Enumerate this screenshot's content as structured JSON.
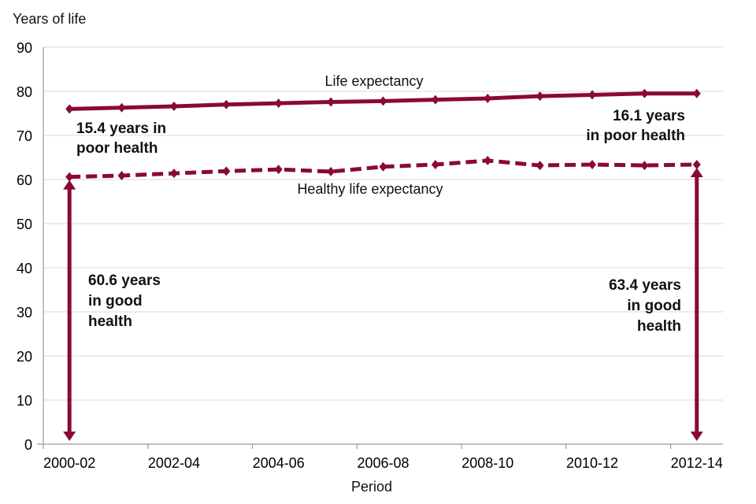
{
  "chart_data": {
    "type": "line",
    "title": "",
    "ylabel": "Years of life",
    "xlabel": "Period",
    "ylim": [
      0,
      90
    ],
    "yticks": [
      0,
      10,
      20,
      30,
      40,
      50,
      60,
      70,
      80,
      90
    ],
    "grid": true,
    "categories": [
      "2000-02",
      "2001-03",
      "2002-04",
      "2003-05",
      "2004-06",
      "2005-07",
      "2006-08",
      "2007-09",
      "2008-10",
      "2009-11",
      "2010-12",
      "2011-13",
      "2012-14"
    ],
    "xtick_labels": [
      "2000-02",
      "2002-04",
      "2004-06",
      "2006-08",
      "2008-10",
      "2010-12",
      "2012-14"
    ],
    "series": [
      {
        "name": "Life expectancy",
        "style": "solid",
        "color": "#8b0a32",
        "values": [
          76.0,
          76.3,
          76.6,
          77.0,
          77.3,
          77.6,
          77.8,
          78.1,
          78.4,
          78.9,
          79.2,
          79.5,
          79.5
        ]
      },
      {
        "name": "Healthy life expectancy",
        "style": "dashed",
        "color": "#8b0a32",
        "values": [
          60.6,
          60.9,
          61.4,
          61.9,
          62.3,
          61.8,
          62.9,
          63.4,
          64.3,
          63.2,
          63.4,
          63.2,
          63.4
        ]
      }
    ],
    "annotations": {
      "poor_start": [
        "15.4 years in",
        "poor health"
      ],
      "poor_end": [
        "16.1 years",
        "in poor health"
      ],
      "good_start": [
        "60.6 years",
        "in good",
        "health"
      ],
      "good_end": [
        "63.4 years",
        "in good",
        "health"
      ]
    }
  }
}
